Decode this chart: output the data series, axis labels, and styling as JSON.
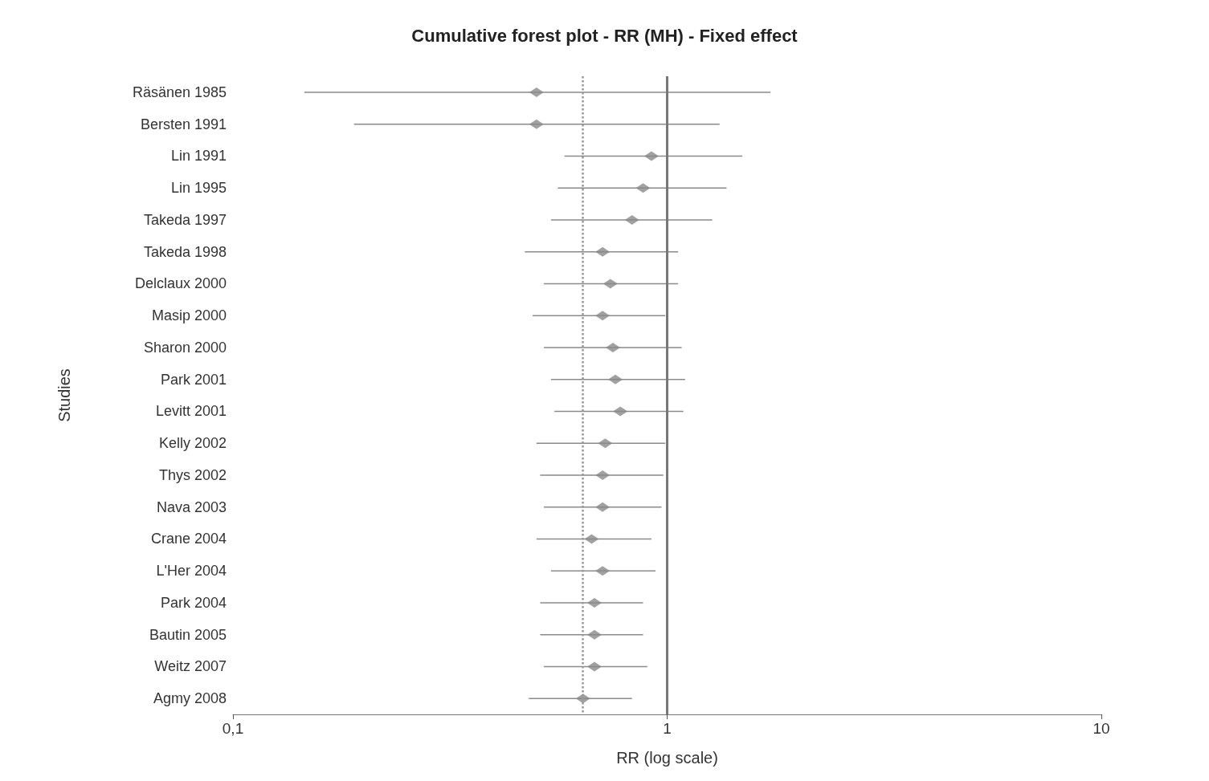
{
  "chart_data": {
    "type": "scatter",
    "title": "Cumulative forest plot - RR (MH) - Fixed effect",
    "xlabel": "RR (log scale)",
    "ylabel": "Studies",
    "orientation": "horizontal",
    "log": "x",
    "grid": false,
    "legend": false,
    "marker": "diamond",
    "color": "#8a8a8a",
    "categories": [
      "Räsänen 1985",
      "Bersten 1991",
      "Lin 1991",
      "Lin 1995",
      "Takeda 1997",
      "Takeda 1998",
      "Delclaux 2000",
      "Masip 2000",
      "Sharon 2000",
      "Park 2001",
      "Levitt 2001",
      "Kelly 2002",
      "Thys 2002",
      "Nava 2003",
      "Crane 2004",
      "L'Her 2004",
      "Park 2004",
      "Bautin 2005",
      "Weitz 2007",
      "Agmy 2008"
    ],
    "values": [
      0.5,
      0.5,
      0.92,
      0.88,
      0.83,
      0.71,
      0.74,
      0.71,
      0.75,
      0.76,
      0.78,
      0.72,
      0.71,
      0.71,
      0.67,
      0.71,
      0.68,
      0.68,
      0.68,
      0.64
    ],
    "errors": [
      [
        0.146,
        1.73
      ],
      [
        0.19,
        1.32
      ],
      [
        0.58,
        1.49
      ],
      [
        0.56,
        1.37
      ],
      [
        0.54,
        1.27
      ],
      [
        0.47,
        1.06
      ],
      [
        0.52,
        1.06
      ],
      [
        0.49,
        0.99
      ],
      [
        0.52,
        1.08
      ],
      [
        0.54,
        1.1
      ],
      [
        0.55,
        1.09
      ],
      [
        0.5,
        0.99
      ],
      [
        0.51,
        0.98
      ],
      [
        0.52,
        0.97
      ],
      [
        0.5,
        0.92
      ],
      [
        0.54,
        0.94
      ],
      [
        0.51,
        0.88
      ],
      [
        0.51,
        0.88
      ],
      [
        0.52,
        0.9
      ],
      [
        0.48,
        0.83
      ]
    ],
    "xlim": [
      0.1,
      10
    ],
    "xticks": [
      {
        "value": 0.1,
        "label": "0,1"
      },
      1,
      10
    ],
    "ref_lines": [
      {
        "axis": "x",
        "value": 1,
        "label": null,
        "color": "#777777",
        "line_style": "solid"
      },
      {
        "axis": "x",
        "value": 0.64,
        "label": null,
        "color": "#999999",
        "line_style": "dotted"
      }
    ]
  }
}
